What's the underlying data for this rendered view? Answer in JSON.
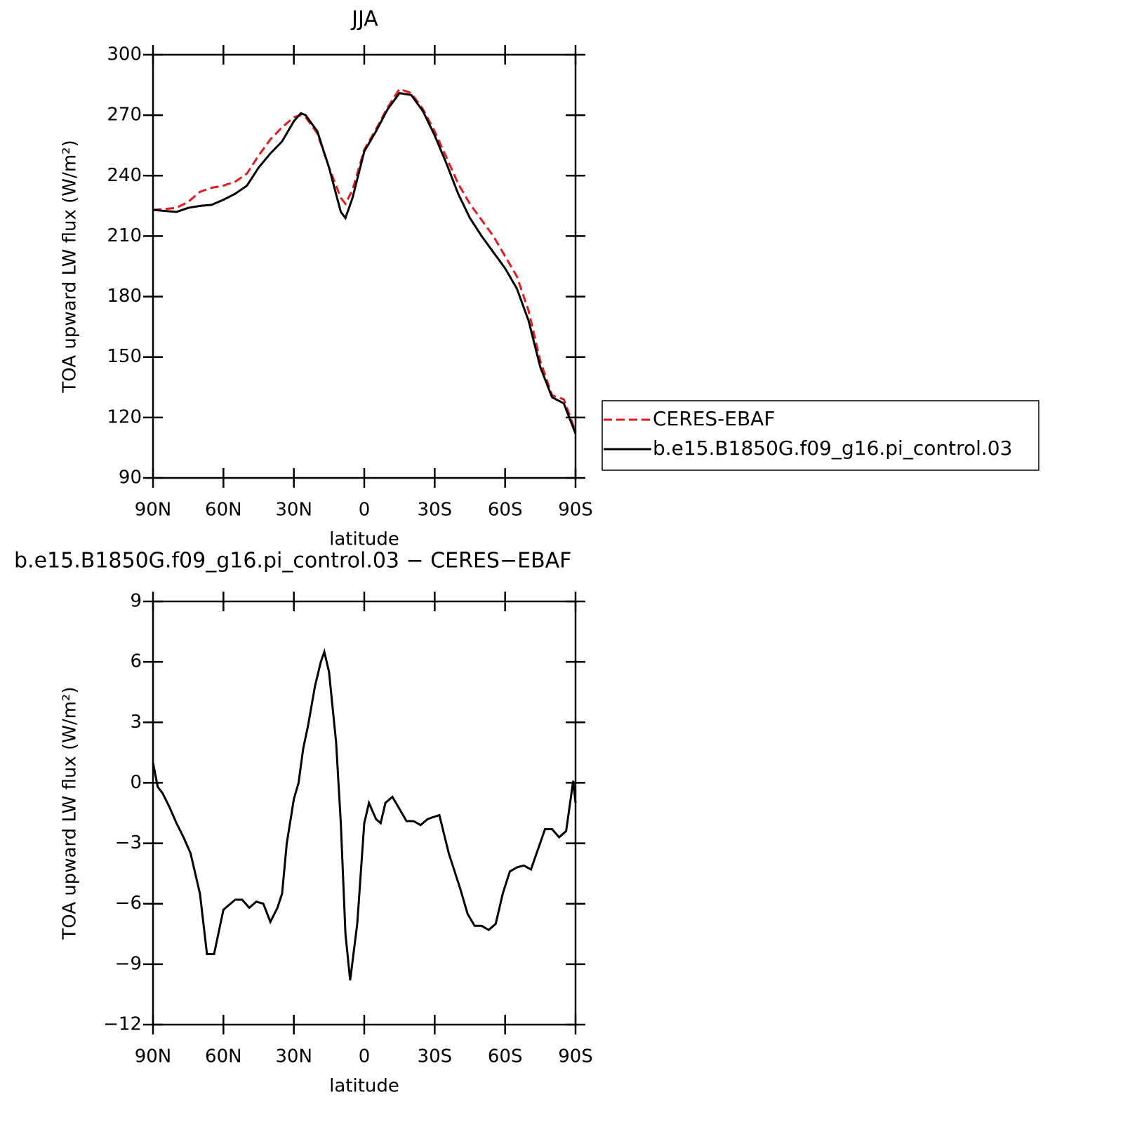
{
  "chart_data": [
    {
      "type": "line",
      "title": "JJA",
      "xlabel": "latitude",
      "ylabel": "TOA upward LW flux (W/m²)",
      "x": [
        90,
        85,
        80,
        75,
        70,
        65,
        60,
        55,
        50,
        45,
        40,
        35,
        30,
        27,
        25,
        20,
        15,
        10,
        8,
        5,
        0,
        -5,
        -10,
        -15,
        -20,
        -25,
        -30,
        -35,
        -40,
        -45,
        -50,
        -55,
        -60,
        -65,
        -70,
        -75,
        -80,
        -85,
        -90
      ],
      "series": [
        {
          "name": "CERES-EBAF",
          "color": "#e41a1c",
          "dashed": true,
          "values": [
            223,
            223.5,
            224,
            227,
            232,
            234,
            235,
            237,
            241,
            250,
            258,
            264,
            269,
            270,
            269,
            261,
            244,
            229,
            226,
            233,
            253,
            263,
            274,
            283,
            281,
            273,
            262,
            249,
            236,
            226,
            218,
            210,
            200,
            190,
            173,
            148,
            131,
            129,
            113
          ]
        },
        {
          "name": "b.e15.B1850G.f09_g16.pi_control.03",
          "color": "#000000",
          "dashed": false,
          "values": [
            223,
            222.5,
            222,
            224,
            225,
            225.5,
            228,
            231,
            235,
            244,
            251,
            257,
            267,
            271,
            270,
            262,
            244,
            222,
            219,
            229,
            252,
            262,
            273,
            281,
            280,
            272,
            260,
            246,
            231,
            219,
            210,
            202,
            194,
            184,
            168,
            145,
            130,
            127,
            112
          ]
        }
      ],
      "xlim": [
        90,
        -90
      ],
      "ylim": [
        90,
        300
      ],
      "xticks": [
        {
          "value": 90,
          "label": "90N"
        },
        {
          "value": 60,
          "label": "60N"
        },
        {
          "value": 30,
          "label": "30N"
        },
        0,
        {
          "value": -30,
          "label": "30S"
        },
        {
          "value": -60,
          "label": "60S"
        },
        {
          "value": -90,
          "label": "90S"
        }
      ],
      "yticks": [
        90,
        120,
        150,
        180,
        210,
        240,
        270,
        300
      ],
      "legend": "right"
    },
    {
      "type": "line",
      "title": "b.e15.B1850G.f09_g16.pi_control.03 − CERES−EBAF",
      "xlabel": "latitude",
      "ylabel": "TOA upward LW flux (W/m²)",
      "x": [
        90,
        88,
        86,
        83,
        80,
        77,
        74,
        70,
        67,
        64,
        60,
        55,
        52,
        49,
        46,
        43,
        40,
        37,
        35,
        33,
        30,
        28,
        26,
        24,
        21,
        18.5,
        17,
        15,
        12,
        10,
        8,
        6,
        3,
        0,
        -2,
        -5,
        -7,
        -9,
        -12,
        -15,
        -18,
        -21,
        -24,
        -27,
        -32,
        -36,
        -41,
        -44,
        -47,
        -50,
        -53,
        -56,
        -59,
        -62,
        -65,
        -68,
        -71,
        -74,
        -77,
        -80,
        -83,
        -86,
        -89,
        -90
      ],
      "color": "#000000",
      "values": [
        1,
        -0.2,
        -0.5,
        -1.2,
        -2,
        -2.7,
        -3.5,
        -5.5,
        -8.5,
        -8.5,
        -6.3,
        -5.8,
        -5.8,
        -6.2,
        -5.9,
        -6,
        -6.9,
        -6.2,
        -5.5,
        -3,
        -0.8,
        0,
        1.7,
        2.8,
        4.8,
        6,
        6.5,
        5.5,
        2,
        -2,
        -7.5,
        -9.8,
        -7,
        -2,
        -1,
        -1.8,
        -2,
        -1,
        -0.7,
        -1.3,
        -1.9,
        -1.9,
        -2.1,
        -1.8,
        -1.6,
        -3.5,
        -5.3,
        -6.5,
        -7.1,
        -7.1,
        -7.3,
        -7,
        -5.5,
        -4.4,
        -4.2,
        -4.1,
        -4.3,
        -3.3,
        -2.3,
        -2.3,
        -2.7,
        -2.4,
        0.1,
        -1
      ],
      "xlim": [
        90,
        -90
      ],
      "ylim": [
        -12,
        9
      ],
      "xticks": [
        {
          "value": 90,
          "label": "90N"
        },
        {
          "value": 60,
          "label": "60N"
        },
        {
          "value": 30,
          "label": "30N"
        },
        0,
        {
          "value": -30,
          "label": "30S"
        },
        {
          "value": -60,
          "label": "60S"
        },
        {
          "value": -90,
          "label": "90S"
        }
      ],
      "yticks": [
        {
          "value": -12,
          "label": "−12"
        },
        {
          "value": -9,
          "label": "−9"
        },
        {
          "value": -6,
          "label": "−6"
        },
        {
          "value": -3,
          "label": "−3"
        },
        0,
        3,
        6,
        9
      ]
    }
  ]
}
